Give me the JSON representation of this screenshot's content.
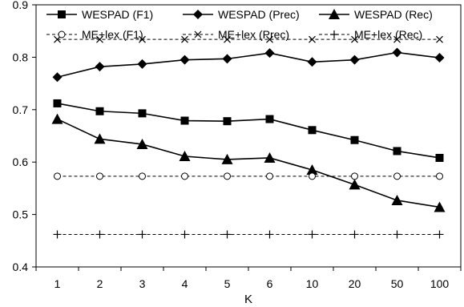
{
  "chart_data": {
    "type": "line",
    "title": "",
    "xlabel": "K",
    "ylabel": "",
    "categories": [
      "1",
      "2",
      "3",
      "4",
      "5",
      "6",
      "10",
      "20",
      "50",
      "100"
    ],
    "ylim": [
      0.4,
      0.9
    ],
    "yticks": [
      "0.4",
      "0.5",
      "0.6",
      "0.7",
      "0.8",
      "0.9"
    ],
    "grid": false,
    "legend_position": "top",
    "series": [
      {
        "name": "WESPAD (F1)",
        "marker": "square",
        "dash": "solid",
        "values": [
          0.712,
          0.697,
          0.693,
          0.679,
          0.678,
          0.682,
          0.661,
          0.642,
          0.621,
          0.608
        ]
      },
      {
        "name": "WESPAD (Prec)",
        "marker": "diamond",
        "dash": "solid",
        "values": [
          0.762,
          0.782,
          0.787,
          0.795,
          0.797,
          0.808,
          0.791,
          0.795,
          0.809,
          0.799
        ]
      },
      {
        "name": "WESPAD (Rec)",
        "marker": "triangle",
        "dash": "solid",
        "values": [
          0.682,
          0.644,
          0.634,
          0.611,
          0.605,
          0.608,
          0.585,
          0.557,
          0.527,
          0.514
        ]
      },
      {
        "name": "ME+lex (F1)",
        "marker": "circle",
        "dash": "dashed",
        "values": [
          0.573,
          0.573,
          0.573,
          0.573,
          0.573,
          0.573,
          0.573,
          0.573,
          0.573,
          0.573
        ]
      },
      {
        "name": "ME+lex (Prec)",
        "marker": "x",
        "dash": "dashed",
        "values": [
          0.834,
          0.834,
          0.834,
          0.834,
          0.834,
          0.834,
          0.834,
          0.834,
          0.834,
          0.834
        ]
      },
      {
        "name": "ME+lex (Rec)",
        "marker": "plus",
        "dash": "dashed",
        "values": [
          0.462,
          0.462,
          0.462,
          0.462,
          0.462,
          0.462,
          0.462,
          0.462,
          0.462,
          0.462
        ]
      }
    ]
  }
}
